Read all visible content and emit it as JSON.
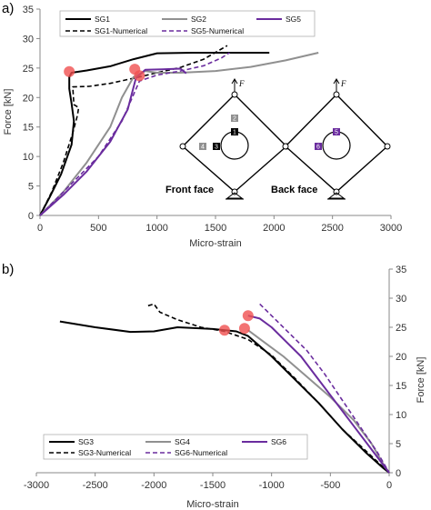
{
  "chart_data": [
    {
      "type": "line",
      "panel_label": "a)",
      "xlabel": "Micro-strain",
      "ylabel": "Force [kN]",
      "xlim": [
        0,
        3000
      ],
      "ylim": [
        0,
        35
      ],
      "xticks": [
        0,
        500,
        1000,
        1500,
        2000,
        2500,
        3000
      ],
      "yticks": [
        0,
        5,
        10,
        15,
        20,
        25,
        30,
        35
      ],
      "grid": false,
      "legend_position": "top-left",
      "colors": {
        "sg1": "#000000",
        "sg2": "#909090",
        "sg5": "#6a2c9e",
        "marker": "#f05050"
      },
      "series": [
        {
          "name": "SG1",
          "color": "#000000",
          "dash": false,
          "points": [
            [
              0,
              0
            ],
            [
              80,
              3
            ],
            [
              180,
              7
            ],
            [
              270,
              12
            ],
            [
              290,
              16
            ],
            [
              270,
              19
            ],
            [
              250,
              21.5
            ],
            [
              250,
              23.5
            ],
            [
              270,
              24.2
            ],
            [
              400,
              24.6
            ],
            [
              600,
              25.3
            ],
            [
              800,
              26.5
            ],
            [
              1000,
              27.5
            ],
            [
              1300,
              27.6
            ],
            [
              1600,
              27.6
            ],
            [
              1960,
              27.6
            ]
          ]
        },
        {
          "name": "SG1-Numerical",
          "color": "#000000",
          "dash": true,
          "points": [
            [
              0,
              0
            ],
            [
              100,
              4
            ],
            [
              200,
              9
            ],
            [
              280,
              14
            ],
            [
              320,
              17
            ],
            [
              330,
              18.3
            ],
            [
              290,
              18.8
            ],
            [
              280,
              21.8
            ],
            [
              420,
              21.9
            ],
            [
              600,
              22.4
            ],
            [
              850,
              23.5
            ],
            [
              1000,
              24.2
            ],
            [
              1200,
              25.1
            ],
            [
              1400,
              26.5
            ],
            [
              1600,
              28.8
            ]
          ]
        },
        {
          "name": "SG2",
          "color": "#909090",
          "dash": false,
          "points": [
            [
              0,
              0
            ],
            [
              200,
              4
            ],
            [
              400,
              9
            ],
            [
              600,
              15
            ],
            [
              700,
              20
            ],
            [
              800,
              23.5
            ],
            [
              900,
              24.5
            ],
            [
              1000,
              24.2
            ],
            [
              1200,
              24.2
            ],
            [
              1500,
              24.5
            ],
            [
              1800,
              25.2
            ],
            [
              2100,
              26.3
            ],
            [
              2380,
              27.6
            ]
          ]
        },
        {
          "name": "SG5",
          "color": "#6a2c9e",
          "dash": false,
          "points": [
            [
              0,
              0
            ],
            [
              200,
              3.5
            ],
            [
              400,
              7.5
            ],
            [
              600,
              12.5
            ],
            [
              750,
              18
            ],
            [
              820,
              23.3
            ],
            [
              900,
              24.7
            ],
            [
              1050,
              24.8
            ],
            [
              1200,
              24.9
            ],
            [
              1250,
              24.1
            ]
          ]
        },
        {
          "name": "SG5-Numerical",
          "color": "#6a2c9e",
          "dash": true,
          "points": [
            [
              0,
              0
            ],
            [
              250,
              5
            ],
            [
              500,
              10
            ],
            [
              700,
              16
            ],
            [
              850,
              22.8
            ],
            [
              1000,
              23.8
            ],
            [
              1200,
              24.5
            ],
            [
              1400,
              25.4
            ],
            [
              1550,
              26.7
            ],
            [
              1620,
              27.6
            ]
          ]
        }
      ],
      "markers": [
        [
          250,
          24.4
        ],
        [
          810,
          24.8
        ],
        [
          850,
          23.7
        ]
      ],
      "inset": {
        "force_symbol": "F",
        "front_face_label": "Front face",
        "back_face_label": "Back face",
        "front_gauges": [
          "1",
          "2",
          "3",
          "4"
        ],
        "back_gauges": [
          "5",
          "6"
        ]
      }
    },
    {
      "type": "line",
      "panel_label": "b)",
      "xlabel": "Micro-strain",
      "ylabel": "Force [kN]",
      "xlim": [
        -3000,
        0
      ],
      "ylim": [
        0,
        35
      ],
      "xticks": [
        -3000,
        -2500,
        -2000,
        -1500,
        -1000,
        -500,
        0
      ],
      "yticks": [
        0,
        5,
        10,
        15,
        20,
        25,
        30,
        35
      ],
      "grid": false,
      "legend_position": "bottom-left",
      "colors": {
        "sg3": "#000000",
        "sg4": "#909090",
        "sg6": "#6a2c9e",
        "marker": "#f05050"
      },
      "series": [
        {
          "name": "SG3",
          "color": "#000000",
          "dash": false,
          "points": [
            [
              -2800,
              26
            ],
            [
              -2500,
              25
            ],
            [
              -2200,
              24.2
            ],
            [
              -2000,
              24.3
            ],
            [
              -1800,
              25
            ],
            [
              -1500,
              24.7
            ],
            [
              -1300,
              24.3
            ],
            [
              -1200,
              23.5
            ],
            [
              -1000,
              20
            ],
            [
              -800,
              16
            ],
            [
              -600,
              12
            ],
            [
              -400,
              7.5
            ],
            [
              -200,
              3.5
            ],
            [
              -50,
              0.8
            ],
            [
              0,
              0
            ]
          ]
        },
        {
          "name": "SG3-Numerical",
          "color": "#000000",
          "dash": true,
          "points": [
            [
              -2050,
              28.7
            ],
            [
              -2000,
              29
            ],
            [
              -1950,
              27.6
            ],
            [
              -1800,
              26.3
            ],
            [
              -1600,
              25
            ],
            [
              -1400,
              24.3
            ],
            [
              -1200,
              22.9
            ],
            [
              -1000,
              20.2
            ],
            [
              -800,
              16.2
            ],
            [
              -600,
              12
            ],
            [
              -400,
              7.5
            ],
            [
              -200,
              3.8
            ],
            [
              0,
              0
            ]
          ]
        },
        {
          "name": "SG4",
          "color": "#909090",
          "dash": false,
          "points": [
            [
              -1200,
              24.5
            ],
            [
              -1100,
              23
            ],
            [
              -900,
              20
            ],
            [
              -700,
              16.5
            ],
            [
              -500,
              13
            ],
            [
              -300,
              9
            ],
            [
              -150,
              5
            ],
            [
              -50,
              1.5
            ],
            [
              0,
              0
            ]
          ]
        },
        {
          "name": "SG6",
          "color": "#6a2c9e",
          "dash": false,
          "points": [
            [
              -1200,
              27
            ],
            [
              -1100,
              26.5
            ],
            [
              -1000,
              25
            ],
            [
              -900,
              23
            ],
            [
              -750,
              20
            ],
            [
              -600,
              16
            ],
            [
              -450,
              12
            ],
            [
              -300,
              8
            ],
            [
              -150,
              4
            ],
            [
              0,
              0
            ]
          ]
        },
        {
          "name": "SG6-Numerical",
          "color": "#6a2c9e",
          "dash": true,
          "points": [
            [
              -1100,
              29
            ],
            [
              -1050,
              28
            ],
            [
              -950,
              26
            ],
            [
              -850,
              24
            ],
            [
              -700,
              21
            ],
            [
              -550,
              17
            ],
            [
              -400,
              12.5
            ],
            [
              -250,
              8
            ],
            [
              -100,
              3.5
            ],
            [
              0,
              0
            ]
          ]
        }
      ],
      "markers": [
        [
          -1400,
          24.5
        ],
        [
          -1230,
          24.8
        ],
        [
          -1200,
          27
        ]
      ]
    }
  ]
}
